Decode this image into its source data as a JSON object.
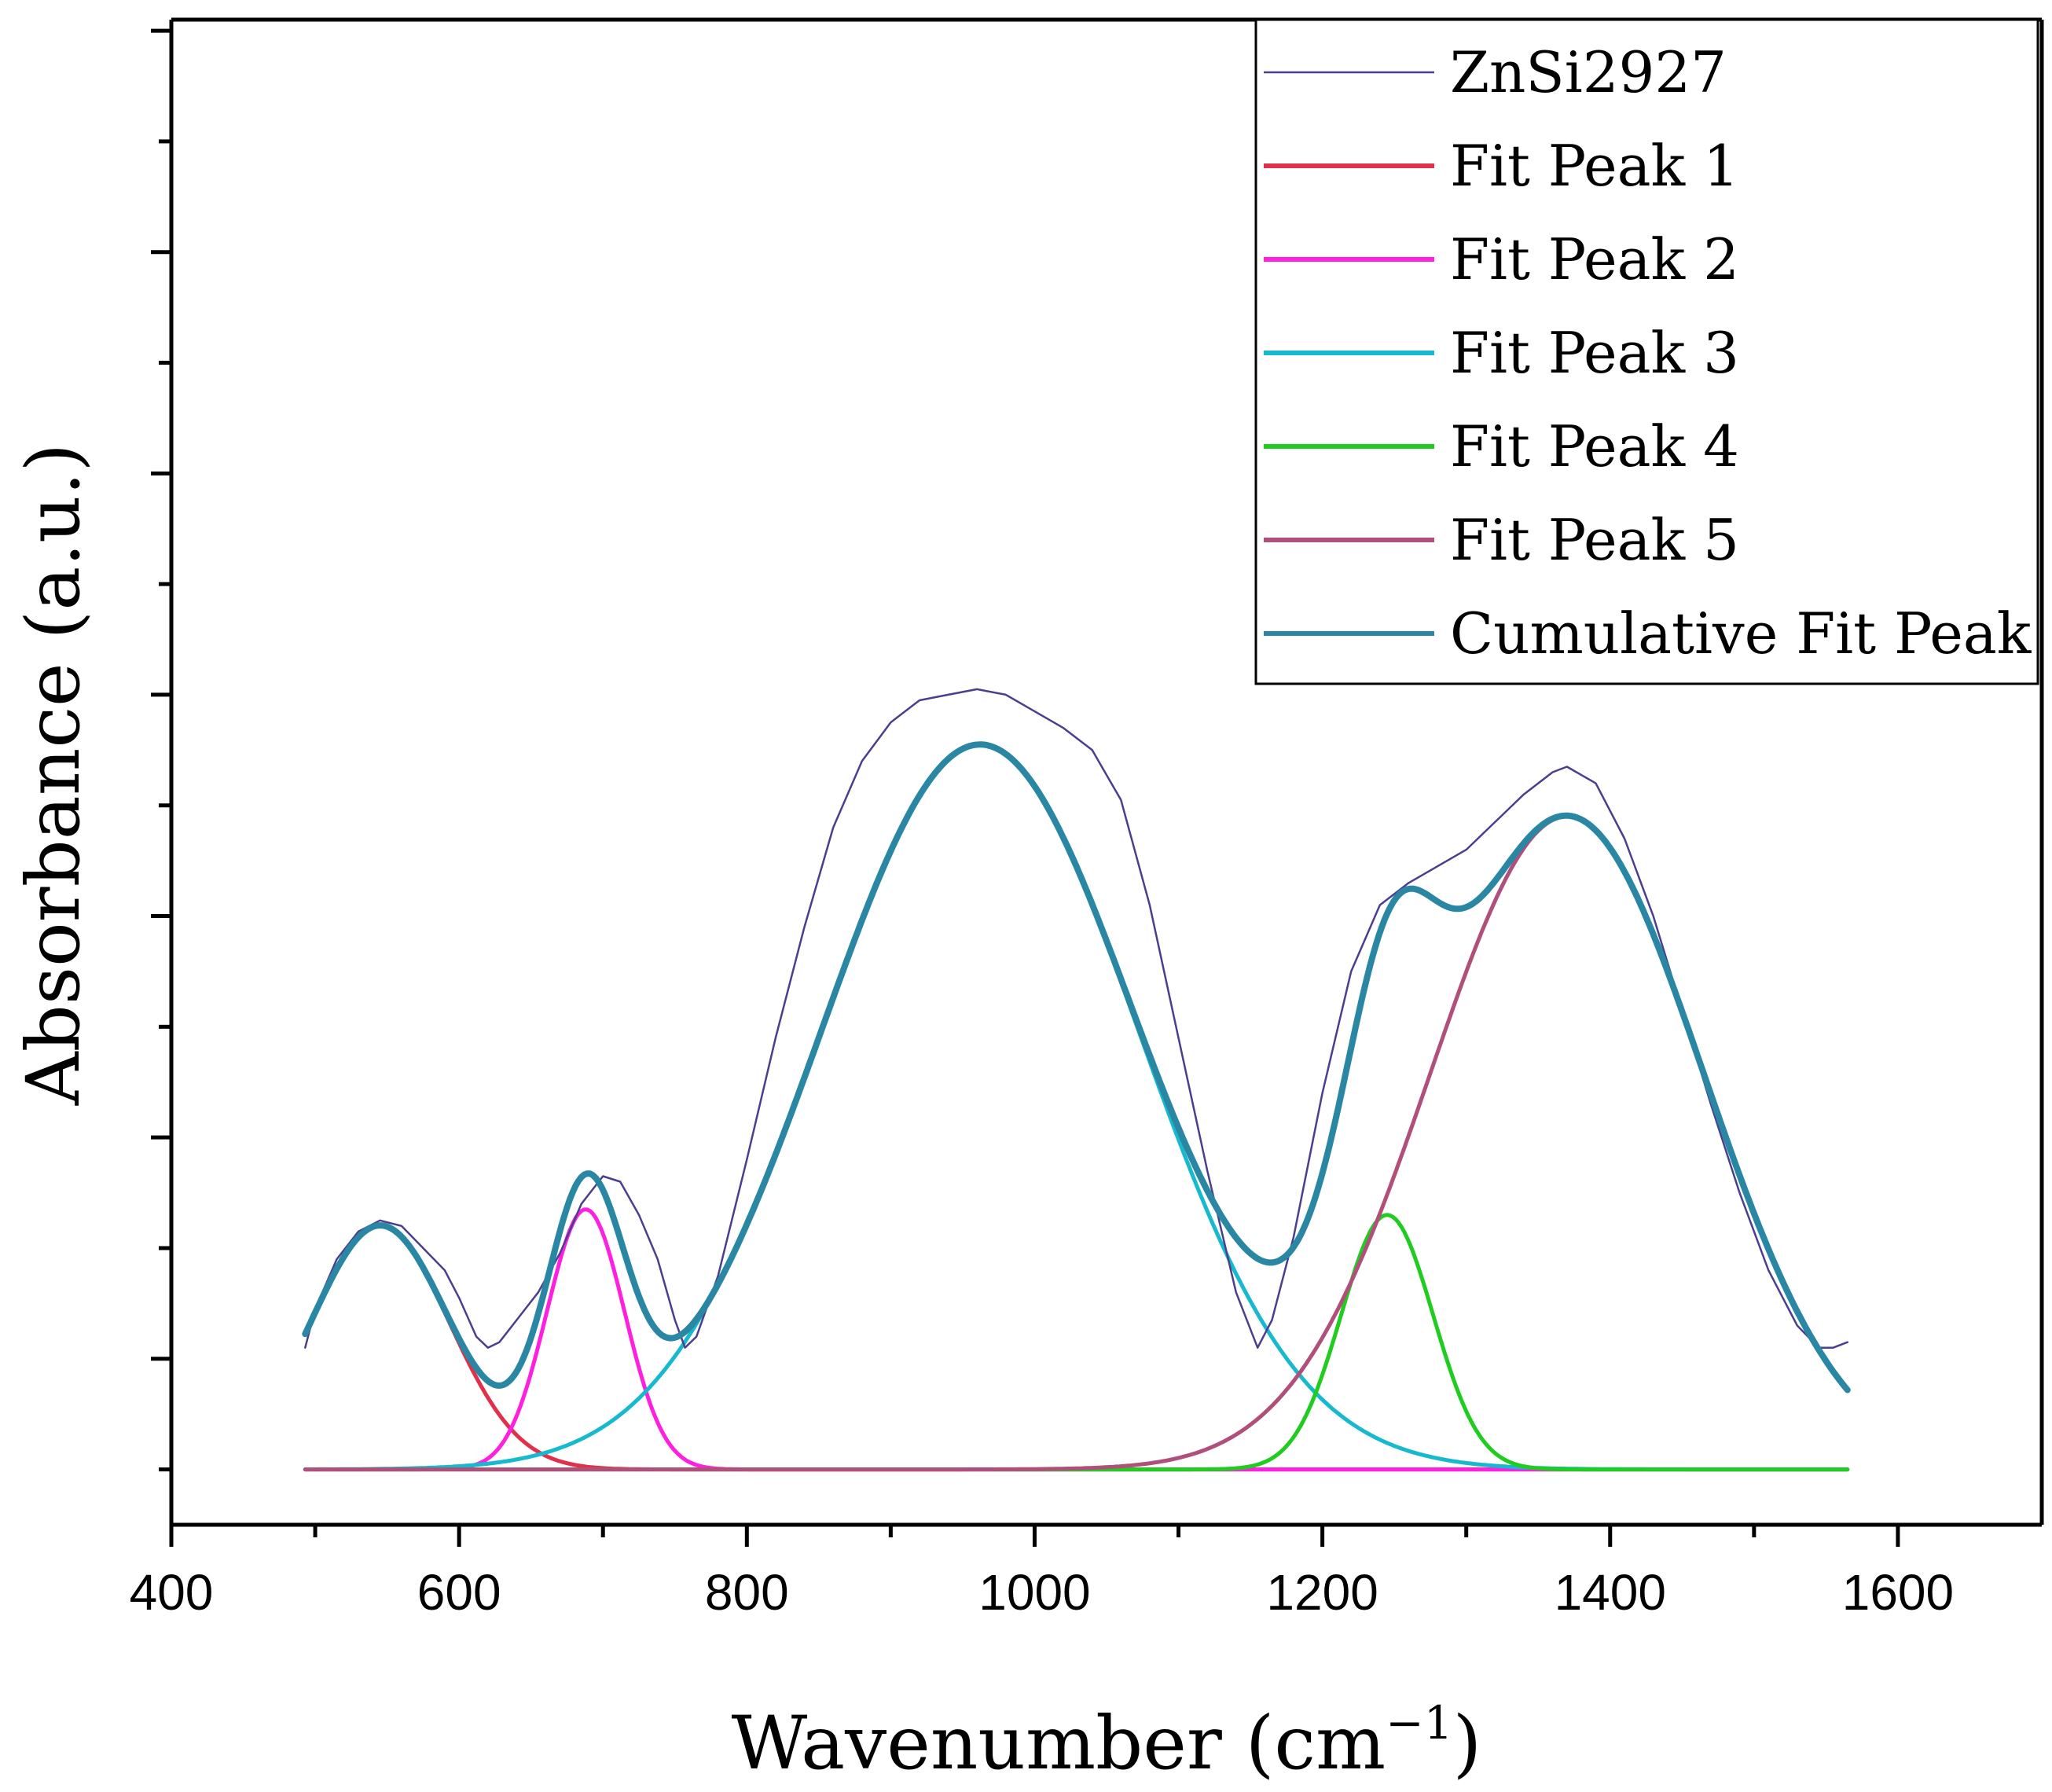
{
  "chart_data": {
    "type": "line",
    "xlabel": "Wavenumber (cm",
    "xlabel_sup": "−1",
    "xlabel_end": ")",
    "ylabel": "Absorbance (a.u.)",
    "xlim": [
      400,
      1700
    ],
    "ylim": [
      -0.5,
      13.1
    ],
    "x_ticks": [
      400,
      600,
      800,
      1000,
      1200,
      1400,
      1600
    ],
    "x_tick_labels": [
      "400",
      "600",
      "800",
      "1000",
      "1200",
      "1400",
      "1600"
    ],
    "x_minor_ticks": [
      500,
      700,
      900,
      1100,
      1300,
      1500
    ],
    "y_major_ticks": [
      1,
      3,
      5,
      7,
      9,
      11,
      13
    ],
    "y_minor_ticks": [
      0,
      2,
      4,
      6,
      8,
      10,
      12
    ],
    "x_range": [
      493,
      1565
    ],
    "legend_position": "top-right",
    "series": [
      {
        "name": "ZnSi2927",
        "color": "#4a3f8f",
        "kind": "raw",
        "points": [
          [
            493,
            1.1
          ],
          [
            500,
            1.45
          ],
          [
            515,
            1.9
          ],
          [
            530,
            2.15
          ],
          [
            545,
            2.25
          ],
          [
            560,
            2.2
          ],
          [
            575,
            2.0
          ],
          [
            590,
            1.8
          ],
          [
            600,
            1.55
          ],
          [
            612,
            1.2
          ],
          [
            620,
            1.1
          ],
          [
            628,
            1.15
          ],
          [
            640,
            1.35
          ],
          [
            655,
            1.6
          ],
          [
            670,
            1.95
          ],
          [
            685,
            2.4
          ],
          [
            700,
            2.65
          ],
          [
            712,
            2.6
          ],
          [
            725,
            2.3
          ],
          [
            738,
            1.9
          ],
          [
            750,
            1.35
          ],
          [
            757,
            1.1
          ],
          [
            765,
            1.2
          ],
          [
            780,
            1.75
          ],
          [
            800,
            2.8
          ],
          [
            820,
            3.9
          ],
          [
            840,
            4.9
          ],
          [
            860,
            5.8
          ],
          [
            880,
            6.4
          ],
          [
            900,
            6.75
          ],
          [
            920,
            6.95
          ],
          [
            940,
            7.0
          ],
          [
            960,
            7.05
          ],
          [
            980,
            7.0
          ],
          [
            1000,
            6.85
          ],
          [
            1020,
            6.7
          ],
          [
            1040,
            6.5
          ],
          [
            1060,
            6.05
          ],
          [
            1080,
            5.1
          ],
          [
            1100,
            3.9
          ],
          [
            1120,
            2.7
          ],
          [
            1140,
            1.6
          ],
          [
            1155,
            1.1
          ],
          [
            1165,
            1.35
          ],
          [
            1180,
            2.1
          ],
          [
            1200,
            3.4
          ],
          [
            1220,
            4.5
          ],
          [
            1240,
            5.1
          ],
          [
            1260,
            5.3
          ],
          [
            1280,
            5.45
          ],
          [
            1300,
            5.6
          ],
          [
            1320,
            5.85
          ],
          [
            1340,
            6.1
          ],
          [
            1360,
            6.3
          ],
          [
            1370,
            6.35
          ],
          [
            1390,
            6.2
          ],
          [
            1410,
            5.7
          ],
          [
            1430,
            5.0
          ],
          [
            1450,
            4.15
          ],
          [
            1470,
            3.3
          ],
          [
            1490,
            2.5
          ],
          [
            1510,
            1.8
          ],
          [
            1530,
            1.3
          ],
          [
            1545,
            1.1
          ],
          [
            1555,
            1.1
          ],
          [
            1565,
            1.15
          ]
        ]
      },
      {
        "name": "Fit Peak 1",
        "color": "#e0304a",
        "kind": "gauss",
        "center": 545,
        "amplitude": 2.2,
        "sigma": 48
      },
      {
        "name": "Fit Peak 2",
        "color": "#ff1fe0",
        "kind": "gauss",
        "center": 688,
        "amplitude": 2.35,
        "sigma": 27
      },
      {
        "name": "Fit Peak 3",
        "color": "#17b9cf",
        "kind": "gauss",
        "center": 962,
        "amplitude": 6.55,
        "sigma": 110
      },
      {
        "name": "Fit Peak 4",
        "color": "#1fcc1f",
        "kind": "gauss",
        "center": 1245,
        "amplitude": 2.3,
        "sigma": 32
      },
      {
        "name": "Fit Peak 5",
        "color": "#b0507a",
        "kind": "gauss",
        "center": 1370,
        "amplitude": 5.9,
        "sigma": 95
      },
      {
        "name": "Cumulative Fit Peak",
        "color": "#2a87a3",
        "kind": "sum"
      }
    ]
  }
}
